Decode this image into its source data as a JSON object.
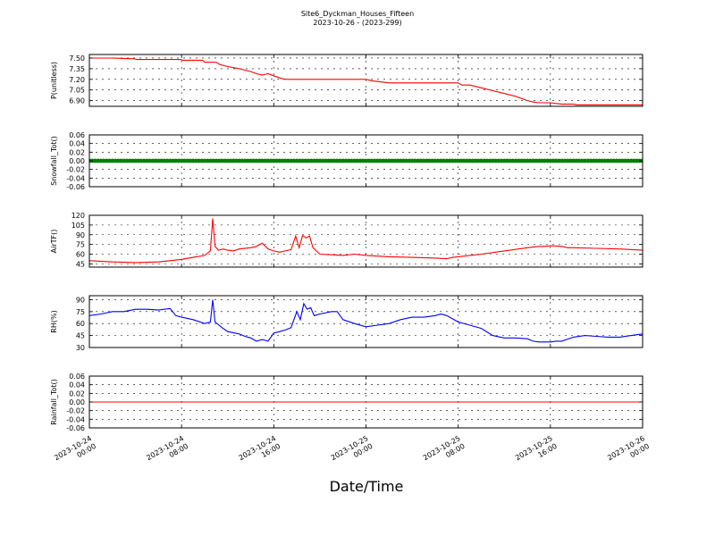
{
  "header": {
    "title": "Site6_Dyckman_Houses_Fifteen",
    "subtitle": "2023-10-26 - (2023-299)"
  },
  "xlabel": "Date/Time",
  "x_ticks": [
    {
      "line1": "2023-10-24",
      "line2": "00:00",
      "h": 0
    },
    {
      "line1": "2023-10-24",
      "line2": "08:00",
      "h": 8
    },
    {
      "line1": "2023-10-24",
      "line2": "16:00",
      "h": 16
    },
    {
      "line1": "2023-10-25",
      "line2": "00:00",
      "h": 24
    },
    {
      "line1": "2023-10-25",
      "line2": "08:00",
      "h": 32
    },
    {
      "line1": "2023-10-25",
      "line2": "16:00",
      "h": 40
    },
    {
      "line1": "2023-10-26",
      "line2": "00:00",
      "h": 48
    }
  ],
  "chart_data": [
    {
      "type": "line",
      "ylabel": "P(unitless)",
      "ylim": [
        6.82,
        7.55
      ],
      "yticks": [
        "7.50",
        "7.35",
        "7.20",
        "7.05",
        "6.90"
      ],
      "color": "#ff0000",
      "grid": true,
      "x": [
        0,
        1,
        2,
        3.9,
        4.1,
        6,
        7.9,
        8.1,
        9.8,
        10,
        11,
        11.3,
        12,
        13,
        14,
        14.5,
        15,
        15.5,
        16,
        16.5,
        17,
        18,
        20,
        22,
        24,
        24.5,
        25,
        26,
        28,
        30,
        32,
        32.3,
        33,
        34,
        35,
        36,
        37,
        38,
        38.5,
        39,
        40,
        40.5,
        41,
        42,
        42.3,
        43,
        48
      ],
      "values": [
        7.5,
        7.5,
        7.5,
        7.49,
        7.48,
        7.48,
        7.48,
        7.47,
        7.47,
        7.44,
        7.44,
        7.41,
        7.38,
        7.35,
        7.31,
        7.28,
        7.26,
        7.28,
        7.25,
        7.22,
        7.2,
        7.2,
        7.2,
        7.2,
        7.2,
        7.18,
        7.17,
        7.15,
        7.15,
        7.15,
        7.15,
        7.12,
        7.12,
        7.08,
        7.04,
        7.0,
        6.96,
        6.9,
        6.88,
        6.87,
        6.87,
        6.86,
        6.85,
        6.85,
        6.84,
        6.84,
        6.84
      ]
    },
    {
      "type": "scatter",
      "ylabel": "Snowfall_Tot()",
      "ylim": [
        -0.06,
        0.06
      ],
      "yticks": [
        "0.06",
        "0.04",
        "0.02",
        "0.00",
        "-0.02",
        "-0.04",
        "-0.06"
      ],
      "color": "#008000",
      "grid": true,
      "x_range": [
        0,
        48
      ],
      "x_step": 0.25,
      "constant_value": 0.0
    },
    {
      "type": "line",
      "ylabel": "AirTF()",
      "ylim": [
        40,
        120
      ],
      "yticks": [
        "120",
        "105",
        "90",
        "75",
        "60",
        "45"
      ],
      "color": "#ff0000",
      "grid": true,
      "x": [
        0,
        2,
        4,
        6,
        7,
        8,
        9,
        10,
        10.5,
        10.7,
        10.9,
        11.2,
        11.6,
        12,
        12.5,
        13,
        14,
        14.5,
        15,
        15.5,
        16,
        16.5,
        17,
        17.5,
        17.9,
        18.2,
        18.5,
        18.8,
        19.1,
        19.4,
        20,
        21,
        22,
        23,
        24,
        26,
        28,
        30,
        31,
        31.5,
        32,
        33,
        34,
        36,
        38,
        39,
        39.5,
        40,
        41,
        41.5,
        42,
        44,
        46,
        48
      ],
      "values": [
        50,
        48,
        47,
        48,
        50,
        52,
        55,
        58,
        65,
        115,
        72,
        66,
        68,
        66,
        65,
        68,
        70,
        72,
        77,
        68,
        65,
        63,
        65,
        67,
        88,
        70,
        89,
        85,
        88,
        70,
        60,
        59,
        58,
        60,
        58,
        56,
        55,
        54,
        53,
        55,
        56,
        58,
        60,
        65,
        70,
        72,
        72,
        73,
        72,
        70,
        70,
        69,
        68,
        66
      ]
    },
    {
      "type": "line",
      "ylabel": "RH(%)",
      "ylim": [
        30,
        95
      ],
      "yticks": [
        "90",
        "75",
        "60",
        "45",
        "30"
      ],
      "color": "#0000ff",
      "grid": true,
      "x": [
        0,
        1,
        2,
        3,
        4,
        5,
        6,
        7,
        7.5,
        8,
        9,
        10,
        10.5,
        10.7,
        10.9,
        11.5,
        12,
        13,
        13.5,
        14,
        14.5,
        15,
        15.5,
        16,
        16.5,
        17,
        17.5,
        18,
        18.3,
        18.6,
        18.9,
        19.2,
        19.5,
        20,
        21,
        21.5,
        22,
        23,
        24,
        25,
        26,
        27,
        28,
        29,
        30,
        30.5,
        31,
        32,
        33,
        34,
        35,
        36,
        37,
        38,
        38.5,
        39,
        40,
        40.5,
        41,
        42,
        43,
        44,
        45,
        46,
        47,
        48
      ],
      "values": [
        70,
        72,
        75,
        75,
        78,
        78,
        77,
        79,
        70,
        68,
        65,
        60,
        62,
        90,
        62,
        55,
        50,
        47,
        44,
        42,
        38,
        40,
        38,
        48,
        50,
        52,
        55,
        75,
        65,
        85,
        78,
        80,
        70,
        72,
        75,
        75,
        65,
        60,
        56,
        58,
        60,
        65,
        68,
        68,
        70,
        72,
        70,
        62,
        58,
        54,
        45,
        42,
        42,
        41,
        38,
        37,
        37,
        38,
        38,
        43,
        45,
        44,
        43,
        43,
        45,
        47
      ]
    },
    {
      "type": "line",
      "ylabel": "Rainfall_Tot()",
      "ylim": [
        -0.06,
        0.06
      ],
      "yticks": [
        "0.06",
        "0.04",
        "0.02",
        "0.00",
        "-0.02",
        "-0.04",
        "-0.06"
      ],
      "color": "#ff0000",
      "grid": true,
      "x": [
        0,
        48
      ],
      "values": [
        0,
        0
      ]
    }
  ]
}
